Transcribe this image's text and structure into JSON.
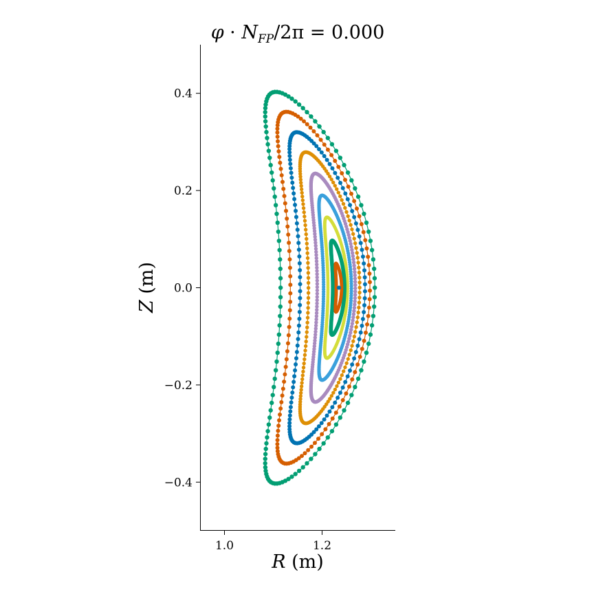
{
  "chart_data": {
    "type": "scatter",
    "title": "φ · N_FP/2π = 0.000",
    "title_parts": {
      "phi": "φ",
      "dot": " · ",
      "n": "N",
      "sub": "FP",
      "rest": "/2π = 0.000"
    },
    "xlabel_parts": {
      "var": "R",
      "unit": " (m)"
    },
    "ylabel_parts": {
      "var": "Z",
      "unit": " (m)"
    },
    "xlim": [
      0.95,
      1.35
    ],
    "ylim": [
      -0.5,
      0.5
    ],
    "x_ticks": [
      {
        "value": 1.0,
        "label": "1.0"
      },
      {
        "value": 1.2,
        "label": "1.2"
      }
    ],
    "y_ticks": [
      {
        "value": 0.4,
        "label": "0.4"
      },
      {
        "value": 0.2,
        "label": "0.2"
      },
      {
        "value": 0.0,
        "label": "0.0"
      },
      {
        "value": -0.2,
        "label": "−0.2"
      },
      {
        "value": -0.4,
        "label": "−0.4"
      }
    ],
    "grid": false,
    "legend": "none",
    "surfaces": [
      {
        "color": "#029e73",
        "r_inner": 1.115,
        "r_outer": 1.308,
        "z_half": 0.403,
        "points": 130,
        "dot": 3.2
      },
      {
        "color": "#d55e00",
        "r_inner": 1.135,
        "r_outer": 1.298,
        "z_half": 0.362,
        "points": 130,
        "dot": 3.0
      },
      {
        "color": "#0173b2",
        "r_inner": 1.155,
        "r_outer": 1.288,
        "z_half": 0.32,
        "points": 140,
        "dot": 3.0
      },
      {
        "color": "#de8f05",
        "r_inner": 1.172,
        "r_outer": 1.277,
        "z_half": 0.279,
        "points": 170,
        "dot": 2.7
      },
      {
        "color": "#a98bbf",
        "r_inner": 1.19,
        "r_outer": 1.268,
        "z_half": 0.235,
        "points": 220,
        "dot": 2.7
      },
      {
        "color": "#3aa0dc",
        "r_inner": 1.203,
        "r_outer": 1.26,
        "z_half": 0.19,
        "points": 240,
        "dot": 2.6
      },
      {
        "color": "#d4dd3a",
        "r_inner": 1.212,
        "r_outer": 1.252,
        "z_half": 0.145,
        "points": 260,
        "dot": 2.4
      },
      {
        "color": "#029e73",
        "r_inner": 1.222,
        "r_outer": 1.246,
        "z_half": 0.097,
        "points": 280,
        "dot": 2.8
      },
      {
        "color": "#d55e00",
        "r_inner": 1.229,
        "r_outer": 1.24,
        "z_half": 0.05,
        "points": 260,
        "dot": 2.4
      },
      {
        "color": "#0173b2",
        "r_inner": 1.2335,
        "r_outer": 1.2345,
        "z_half": 0.001,
        "points": 1,
        "dot": 3.0
      }
    ]
  }
}
